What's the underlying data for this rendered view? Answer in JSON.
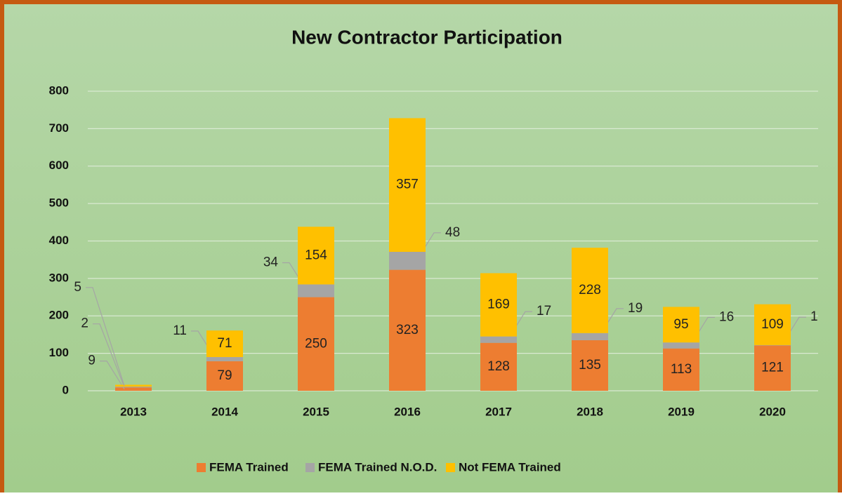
{
  "chart_data": {
    "type": "stacked_bar",
    "title": "New Contractor Participation",
    "categories": [
      "2013",
      "2014",
      "2015",
      "2016",
      "2017",
      "2018",
      "2019",
      "2020"
    ],
    "series": [
      {
        "name": "FEMA Trained",
        "color": "#ed7d31",
        "values": [
          9,
          79,
          250,
          323,
          128,
          135,
          113,
          121
        ]
      },
      {
        "name": "FEMA Trained N.O.D.",
        "color": "#a5a5a5",
        "values": [
          2,
          11,
          34,
          48,
          17,
          19,
          16,
          1
        ]
      },
      {
        "name": "Not FEMA Trained",
        "color": "#ffc000",
        "values": [
          5,
          71,
          154,
          357,
          169,
          228,
          95,
          109
        ]
      }
    ],
    "ylim": [
      0,
      800
    ],
    "yticks": [
      0,
      100,
      200,
      300,
      400,
      500,
      600,
      700,
      800
    ],
    "grid": true,
    "legend": "bottom"
  }
}
